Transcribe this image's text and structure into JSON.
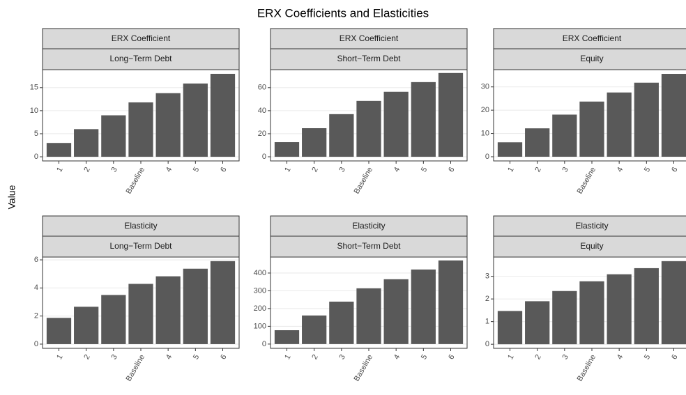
{
  "title": "ERX Coefficients and Elasticities",
  "y_label": "Value",
  "chart_data": [
    {
      "type": "bar",
      "facet_top": "ERX Coefficient",
      "facet_bottom": "Long−Term Debt",
      "categories": [
        "1",
        "2",
        "3",
        "Baseline",
        "4",
        "5",
        "6"
      ],
      "values": [
        3.0,
        6.0,
        9.0,
        11.8,
        13.8,
        15.9,
        18.0
      ],
      "color": "#595959",
      "ylim": [
        -0.9,
        18.9
      ],
      "yticks": [
        0,
        5,
        10,
        15
      ],
      "grid": true
    },
    {
      "type": "bar",
      "facet_top": "ERX Coefficient",
      "facet_bottom": "Short−Term Debt",
      "categories": [
        "1",
        "2",
        "3",
        "Baseline",
        "4",
        "5",
        "6"
      ],
      "values": [
        12.7,
        24.8,
        37,
        48.5,
        56.4,
        64.8,
        72.7
      ],
      "color": "#595959",
      "ylim": [
        -3.6,
        75.6
      ],
      "yticks": [
        0,
        20,
        40,
        60
      ],
      "grid": true
    },
    {
      "type": "bar",
      "facet_top": "ERX Coefficient",
      "facet_bottom": "Equity",
      "categories": [
        "1",
        "2",
        "3",
        "Baseline",
        "4",
        "5",
        "6"
      ],
      "values": [
        6.2,
        12.2,
        18.1,
        23.7,
        27.6,
        31.8,
        35.6
      ],
      "color": "#595959",
      "ylim": [
        -1.8,
        37.4
      ],
      "yticks": [
        0,
        10,
        20,
        30
      ],
      "grid": true
    },
    {
      "type": "bar",
      "facet_top": "Elasticity",
      "facet_bottom": "Long−Term Debt",
      "categories": [
        "1",
        "2",
        "3",
        "Baseline",
        "4",
        "5",
        "6"
      ],
      "values": [
        1.87,
        2.66,
        3.5,
        4.29,
        4.83,
        5.37,
        5.91
      ],
      "color": "#595959",
      "ylim": [
        -0.3,
        6.2
      ],
      "yticks": [
        0,
        2,
        4,
        6
      ],
      "grid": true
    },
    {
      "type": "bar",
      "facet_top": "Elasticity",
      "facet_bottom": "Short−Term Debt",
      "categories": [
        "1",
        "2",
        "3",
        "Baseline",
        "4",
        "5",
        "6"
      ],
      "values": [
        78,
        161,
        239,
        314,
        365,
        420,
        471
      ],
      "color": "#595959",
      "ylim": [
        -24,
        490
      ],
      "yticks": [
        0,
        100,
        200,
        300,
        400
      ],
      "grid": true
    },
    {
      "type": "bar",
      "facet_top": "Elasticity",
      "facet_bottom": "Equity",
      "categories": [
        "1",
        "2",
        "3",
        "Baseline",
        "4",
        "5",
        "6"
      ],
      "values": [
        1.47,
        1.9,
        2.35,
        2.78,
        3.09,
        3.36,
        3.67
      ],
      "color": "#595959",
      "ylim": [
        -0.18,
        3.85
      ],
      "yticks": [
        0,
        1,
        2,
        3
      ],
      "grid": true
    }
  ]
}
